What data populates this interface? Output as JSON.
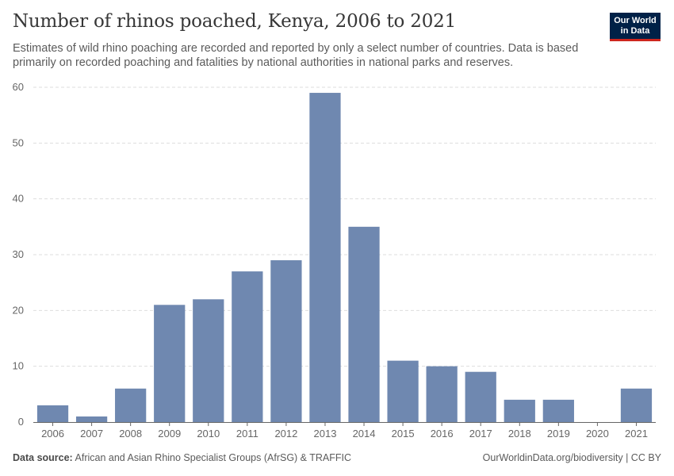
{
  "header": {
    "title": "Number of rhinos poached, Kenya, 2006 to 2021",
    "subtitle": "Estimates of wild rhino poaching are recorded and reported by only a select number of countries. Data is based primarily on recorded poaching and fatalities by national authorities in national parks and reserves."
  },
  "logo": {
    "line1": "Our World",
    "line2": "in Data"
  },
  "footer": {
    "source_label": "Data source:",
    "source_text": "African and Asian Rhino Specialist Groups (AfrSG) & TRAFFIC",
    "credit": "OurWorldinData.org/biodiversity | CC BY"
  },
  "colors": {
    "bar": "#6f88b0",
    "grid": "#dddddd",
    "axis": "#666666",
    "text": "#666666"
  },
  "chart_data": {
    "type": "bar",
    "categories": [
      "2006",
      "2007",
      "2008",
      "2009",
      "2010",
      "2011",
      "2012",
      "2013",
      "2014",
      "2015",
      "2016",
      "2017",
      "2018",
      "2019",
      "2020",
      "2021"
    ],
    "values": [
      3,
      1,
      6,
      21,
      22,
      27,
      29,
      59,
      35,
      11,
      10,
      9,
      4,
      4,
      0,
      6
    ],
    "ylim": [
      0,
      60
    ],
    "yticks": [
      0,
      10,
      20,
      30,
      40,
      50,
      60
    ],
    "grid": true,
    "title": "Number of rhinos poached, Kenya, 2006 to 2021"
  }
}
